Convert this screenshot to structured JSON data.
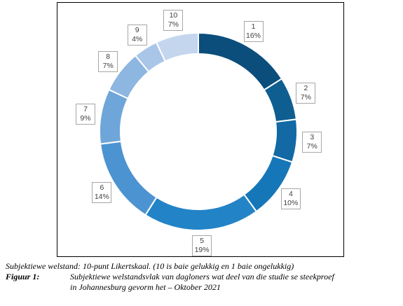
{
  "chart_data": {
    "type": "pie",
    "donut": true,
    "categories": [
      "1",
      "2",
      "3",
      "4",
      "5",
      "6",
      "7",
      "8",
      "9",
      "10"
    ],
    "values": [
      16,
      7,
      7,
      10,
      19,
      14,
      9,
      7,
      4,
      7
    ],
    "value_labels": [
      "16%",
      "7%",
      "7%",
      "10%",
      "19%",
      "14%",
      "9%",
      "7%",
      "4%",
      "7%"
    ],
    "colors": [
      "#0b4e7c",
      "#0f5e91",
      "#1269a4",
      "#1677b8",
      "#2383c7",
      "#4c93d1",
      "#6ea6da",
      "#8db6e0",
      "#a9c5e8",
      "#c4d6ee"
    ],
    "title": "",
    "legend": "none"
  },
  "caption": {
    "line1": "Subjektiewe welstand: 10-punt Likertskaal. (10 is baie gelukkig en 1 baie ongelukkig)",
    "figure_label": "Figuur 1:",
    "figure_text_1": "Subjektiewe welstandsvlak van dagloners wat deel van die studie se steekproef",
    "figure_text_2": "in Johannesburg gevorm het – Oktober 2021"
  }
}
